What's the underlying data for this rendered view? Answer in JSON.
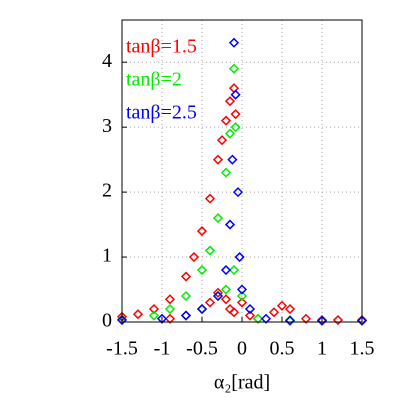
{
  "chart_data": {
    "type": "scatter",
    "x_label": "α₂[rad]",
    "xlim": [
      -1.5,
      1.5
    ],
    "xticks": [
      -1.5,
      -1,
      -0.5,
      0,
      0.5,
      1,
      1.5
    ],
    "ylim": [
      0,
      4.65
    ],
    "yticks": [
      0,
      1,
      2,
      3,
      4
    ],
    "grid": true,
    "legend": "upper left",
    "series": [
      {
        "name": "tanβ=1.5",
        "color": "#ff0000",
        "x": [
          -1.5,
          -1.3,
          -1.1,
          -0.9,
          -0.7,
          -0.6,
          -0.5,
          -0.4,
          -0.3,
          -0.25,
          -0.2,
          -0.15,
          -0.1,
          -0.08,
          -0.9,
          -0.7,
          -0.5,
          -0.4,
          -0.3,
          -0.2,
          -0.15,
          -0.1,
          0,
          0.1,
          0.2,
          0.4,
          0.5,
          0.6,
          0.8,
          1.0,
          1.2,
          1.5
        ],
        "values": [
          0.08,
          0.12,
          0.2,
          0.35,
          0.7,
          1.0,
          1.4,
          1.9,
          2.5,
          2.8,
          3.1,
          3.4,
          3.6,
          3.2,
          0.05,
          0.1,
          0.2,
          0.3,
          0.45,
          0.35,
          0.2,
          0.15,
          0.3,
          0.1,
          0.05,
          0.15,
          0.25,
          0.2,
          0.05,
          0.03,
          0.03,
          0.03
        ]
      },
      {
        "name": "tanβ=2",
        "color": "#00ee00",
        "x": [
          -1.5,
          -1.1,
          -0.9,
          -0.7,
          -0.5,
          -0.4,
          -0.3,
          -0.2,
          -0.15,
          -0.1,
          -0.08,
          -0.7,
          -0.5,
          -0.3,
          -0.2,
          -0.1,
          0,
          0.2,
          0.6,
          1.0,
          1.5
        ],
        "values": [
          0.04,
          0.1,
          0.2,
          0.4,
          0.8,
          1.1,
          1.6,
          2.3,
          2.9,
          3.9,
          3.0,
          0.1,
          0.2,
          0.4,
          0.5,
          0.8,
          0.4,
          0.05,
          0.03,
          0.02,
          0.02
        ]
      },
      {
        "name": "tanβ=2.5",
        "color": "#0000ff",
        "x": [
          -1.5,
          -1.0,
          -0.7,
          -0.5,
          -0.3,
          -0.2,
          -0.15,
          -0.12,
          -0.1,
          -0.08,
          -0.05,
          -0.03,
          0,
          0.1,
          0.3,
          0.6,
          1.0,
          1.5
        ],
        "values": [
          0.03,
          0.05,
          0.1,
          0.2,
          0.4,
          0.8,
          1.5,
          2.5,
          4.3,
          3.5,
          2.0,
          1.0,
          0.5,
          0.2,
          0.05,
          0.02,
          0.02,
          0.02
        ]
      }
    ]
  }
}
